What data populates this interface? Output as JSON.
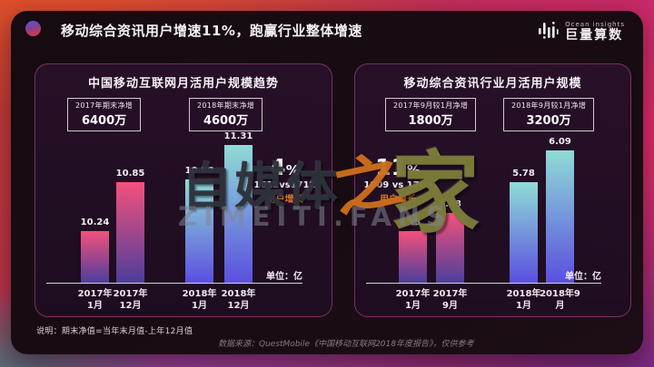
{
  "header": {
    "title": "移动综合资讯用户增速11%，跑赢行业整体增速",
    "logo": {
      "tagline": "Ocean insights",
      "name": "巨量算数"
    }
  },
  "colors": {
    "pink_top": "#f4517c",
    "pink_bottom": "#4c3e9c",
    "teal_top": "#8fdcd6",
    "teal_bottom": "#5b4fe0",
    "accent_orange": "#d4762b",
    "panel_border": "#c44896"
  },
  "chart_data": [
    {
      "type": "bar",
      "title": "中国移动互联网月活用户规模趋势",
      "badges": [
        {
          "label": "2017年期末净增",
          "value": "6400万"
        },
        {
          "label": "2018年期末净增",
          "value": "4600万"
        }
      ],
      "categories": [
        "2017年\n1月",
        "2017年\n12月",
        "2018年\n1月",
        "2018年\n12月"
      ],
      "values": [
        10.24,
        10.85,
        10.88,
        11.31
      ],
      "value_labels": [
        "10.24",
        "10.85",
        "10.88",
        "11.31"
      ],
      "bar_palette": [
        "pink",
        "pink",
        "teal",
        "teal"
      ],
      "ylim": [
        9.6,
        11.31
      ],
      "unit": "单位：亿",
      "annotation": {
        "pct": "4",
        "sym": "%",
        "compare": "1812vs1712",
        "label": "用户增长"
      }
    },
    {
      "type": "bar",
      "title": "移动综合资讯行业月活用户规模",
      "badges": [
        {
          "label": "2017年9月较1月净增",
          "value": "1800万"
        },
        {
          "label": "2018年9月较1月净增",
          "value": "3200万"
        }
      ],
      "categories": [
        "2017年\n1月",
        "2017年\n9月",
        "2018年\n1月",
        "2018年9\n月"
      ],
      "values": [
        5.3,
        5.48,
        5.78,
        6.09
      ],
      "value_labels": [
        "5.3",
        "5.48",
        "5.78",
        "6.09"
      ],
      "bar_palette": [
        "pink",
        "pink",
        "teal",
        "teal"
      ],
      "ylim": [
        4.8,
        6.09
      ],
      "unit": "单位：亿",
      "annotation": {
        "pct": "11",
        "sym": "%",
        "compare": "1809 vs 1709",
        "label": "用户增长"
      }
    }
  ],
  "watermark": {
    "part1": "自媒体",
    "part2": "之",
    "part3": "家",
    "line2": "ZIMEITI.FANS"
  },
  "footer": {
    "note": "说明：期末净值=当年末月值-上年12月值",
    "source": "数据来源：QuestMobile《中国移动互联网2018年度报告》，仅供参考"
  }
}
